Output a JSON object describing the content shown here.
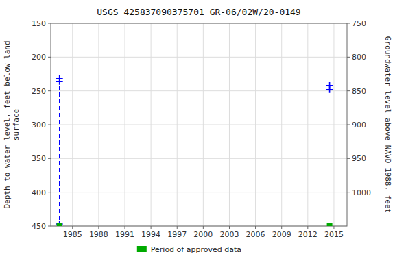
{
  "chart_data": {
    "type": "scatter",
    "title": "USGS 425837090375701 GR-06/02W/20-0149",
    "y_label": "Depth to water level, feet below land\nsurface",
    "y2_label": "Groundwater level above NAVD 1988, feet",
    "xlim": [
      1982.5,
      2016.5
    ],
    "xticks": [
      1985,
      1988,
      1991,
      1994,
      1997,
      2000,
      2003,
      2006,
      2009,
      2012,
      2015
    ],
    "ylim": [
      450,
      150
    ],
    "yticks": [
      150,
      200,
      250,
      300,
      350,
      400,
      450
    ],
    "y2lim": [
      1050,
      750
    ],
    "y2ticks": [
      750,
      800,
      850,
      900,
      950,
      1000
    ],
    "grid": true,
    "legend": "bottom",
    "series": [
      {
        "type": "scatter",
        "marker": "plus",
        "color": "blue",
        "x": [
          1983.5,
          1983.5,
          1983.5,
          2014.5,
          2014.5
        ],
        "values": [
          232,
          236,
          447,
          242,
          248
        ]
      },
      {
        "type": "line",
        "line_style": "dashed",
        "color": "blue",
        "x": [
          1983.5,
          1983.5
        ],
        "values": [
          232,
          447
        ]
      },
      {
        "name": "Period of approved data",
        "type": "scatter",
        "marker": "square",
        "color": "#00aa00",
        "x": [
          1983.5,
          2014.5
        ],
        "values": [
          450,
          450
        ]
      }
    ]
  }
}
